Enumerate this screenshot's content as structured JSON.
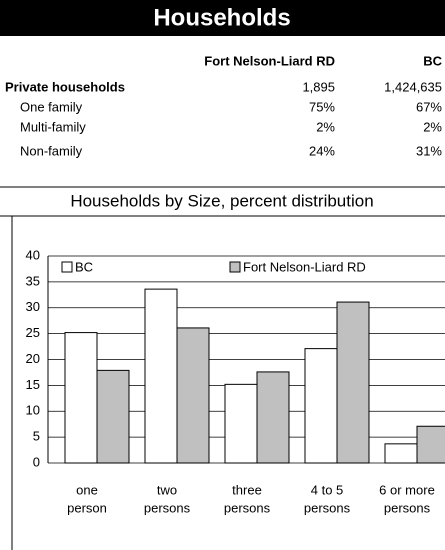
{
  "header": {
    "title": "Households"
  },
  "table": {
    "columns": [
      "Fort Nelson-Liard RD",
      "BC"
    ],
    "rows": [
      [
        "Private households",
        "1,895",
        "1,424,635"
      ],
      [
        "One family",
        "75%",
        "67%"
      ],
      [
        "Multi-family",
        "2%",
        "2%"
      ],
      [
        "Non-family",
        "24%",
        "31%"
      ]
    ]
  },
  "chart_data": {
    "type": "bar",
    "title": "Households by Size, percent distribution",
    "categories": [
      [
        "one",
        "person"
      ],
      [
        "two",
        "persons"
      ],
      [
        "three",
        "persons"
      ],
      [
        "4 to 5",
        "persons"
      ],
      [
        "6 or  more",
        "persons"
      ]
    ],
    "series": [
      {
        "name": "BC",
        "color": "#ffffff",
        "values": [
          25.2,
          33.6,
          15.2,
          22.1,
          3.7
        ]
      },
      {
        "name": "Fort Nelson-Liard RD",
        "color": "#c0c0c0",
        "values": [
          17.9,
          26.1,
          17.6,
          31.1,
          7.1
        ]
      }
    ],
    "ylim": [
      0,
      40
    ],
    "yticks": [
      0,
      5,
      10,
      15,
      20,
      25,
      30,
      35,
      40
    ],
    "grid": true
  }
}
